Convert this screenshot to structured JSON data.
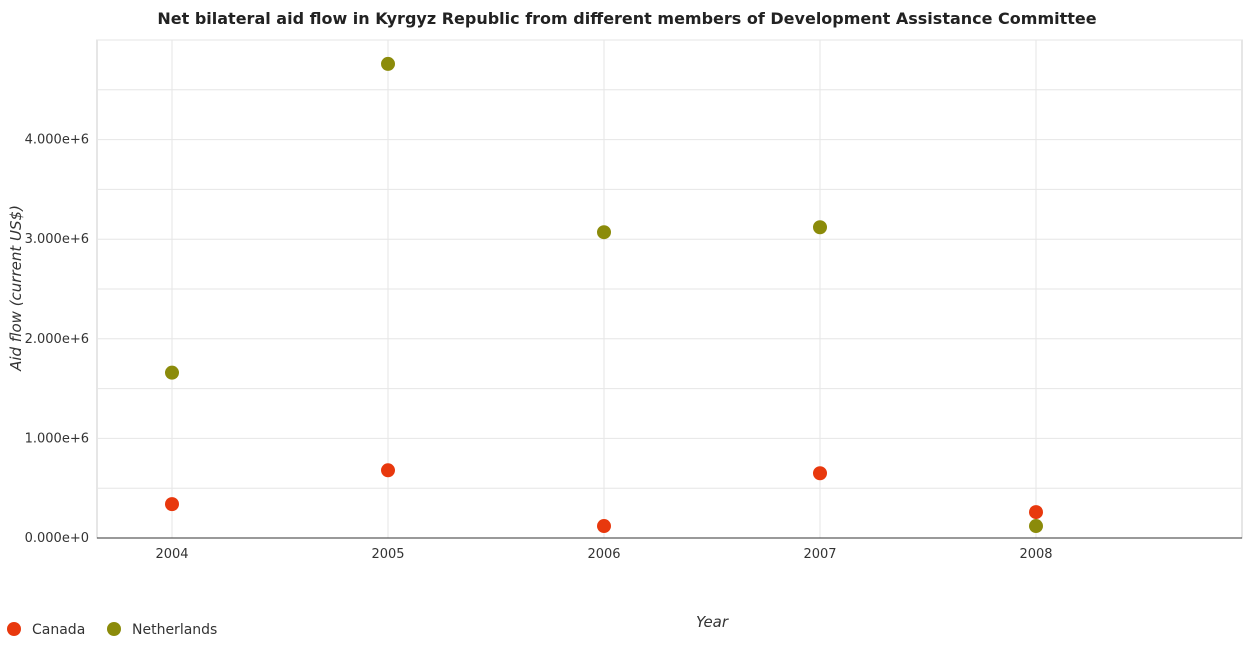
{
  "chart_data": {
    "type": "scatter",
    "title": "Net bilateral aid flow in Kyrgyz Republic from different members of Development Assistance Committee",
    "xlabel": "Year",
    "ylabel": "Aid flow (current US$)",
    "categories": [
      "2004",
      "2005",
      "2006",
      "2007",
      "2008"
    ],
    "ylim": [
      0,
      5000000
    ],
    "y_ticks": [
      {
        "value": 0,
        "label": "0.000e+0"
      },
      {
        "value": 1000000,
        "label": "1.000e+6"
      },
      {
        "value": 2000000,
        "label": "2.000e+6"
      },
      {
        "value": 3000000,
        "label": "3.000e+6"
      },
      {
        "value": 4000000,
        "label": "4.000e+6"
      }
    ],
    "grid": true,
    "legend_position": "bottom-left",
    "series": [
      {
        "name": "Canada",
        "color": "#e8380d",
        "values": [
          340000,
          680000,
          120000,
          650000,
          260000
        ]
      },
      {
        "name": "Netherlands",
        "color": "#8b8b0a",
        "values": [
          1660000,
          4760000,
          3070000,
          3120000,
          120000
        ]
      }
    ]
  }
}
